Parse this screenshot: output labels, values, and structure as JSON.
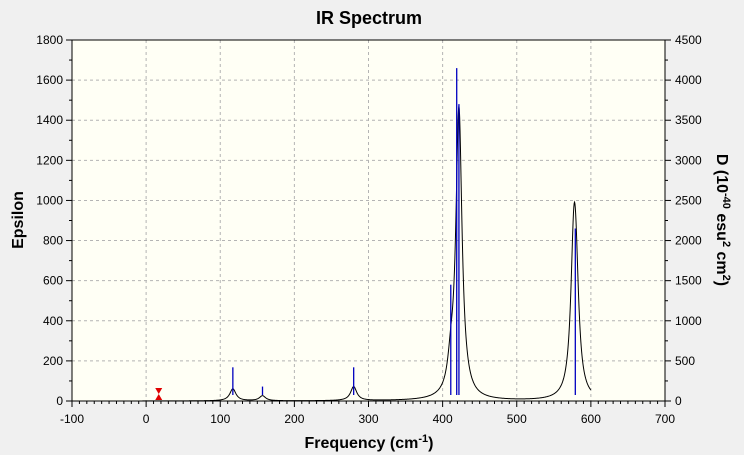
{
  "chart_data": {
    "type": "line",
    "title": "IR Spectrum",
    "xlabel": "Frequency (cm",
    "xlabel_sup": "-1",
    "xlabel_end": ")",
    "ylabel": "Epsilon",
    "ylabel_right_parts": [
      "D (10",
      "-40",
      " esu",
      "2",
      " cm",
      "2",
      ")"
    ],
    "xlim": [
      -100,
      700
    ],
    "ylim": [
      0,
      1800
    ],
    "y2lim": [
      0,
      4500
    ],
    "x_ticks": [
      -100,
      0,
      100,
      200,
      300,
      400,
      500,
      600,
      700
    ],
    "y_ticks": [
      0,
      200,
      400,
      600,
      800,
      1000,
      1200,
      1400,
      1600,
      1800
    ],
    "y2_ticks": [
      0,
      500,
      1000,
      1500,
      2000,
      2500,
      3000,
      3500,
      4000,
      4500
    ],
    "grid": true,
    "colors": {
      "plot_background": "#fffff5",
      "spectrum_line": "#000000",
      "stick_line": "#0000c0",
      "marker": "#e00000",
      "grid": "#b4b4b4"
    },
    "series": [
      {
        "kind": "spectrum",
        "axis": "left",
        "x_range": [
          -5,
          600
        ],
        "peaks": [
          {
            "x": 117,
            "height": 60,
            "width": 10
          },
          {
            "x": 157,
            "height": 25,
            "width": 10
          },
          {
            "x": 280,
            "height": 70,
            "width": 10
          },
          {
            "x": 411,
            "height": 120,
            "width": 10
          },
          {
            "x": 422,
            "height": 1450,
            "width": 10
          },
          {
            "x": 577,
            "height": 680,
            "width": 10
          },
          {
            "x": 580,
            "height": 390,
            "width": 10
          }
        ]
      },
      {
        "kind": "sticks",
        "axis": "right",
        "points": [
          {
            "x": 117,
            "y": 420
          },
          {
            "x": 157,
            "y": 180
          },
          {
            "x": 280,
            "y": 420
          },
          {
            "x": 411,
            "y": 1450
          },
          {
            "x": 419,
            "y": 4150
          },
          {
            "x": 422,
            "y": 3700
          },
          {
            "x": 579,
            "y": 2150
          }
        ]
      }
    ],
    "marker": {
      "x": 17,
      "y": 30,
      "label": "scale-marker-icon"
    }
  }
}
